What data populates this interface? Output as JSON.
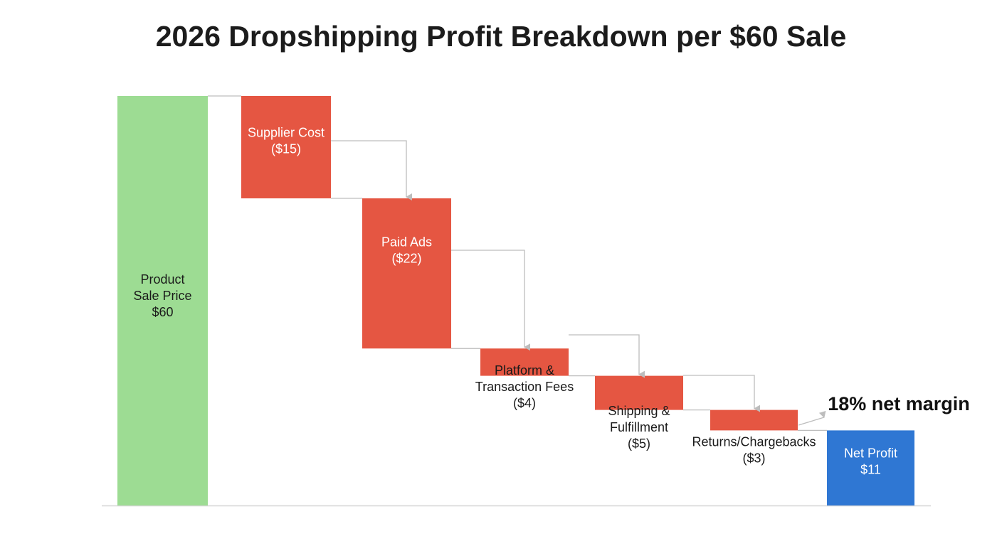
{
  "chart_data": {
    "type": "waterfall",
    "title": "2026 Dropshipping Profit Breakdown per $60 Sale",
    "xlabel": "",
    "ylabel": "",
    "ylim": [
      0,
      60
    ],
    "grid": false,
    "unit": "$",
    "bars": [
      {
        "kind": "total",
        "label": [
          "Product",
          "Sale Price",
          "$60"
        ],
        "value": 60,
        "start": 0,
        "end": 60
      },
      {
        "kind": "decrease",
        "label": [
          "Supplier Cost",
          "($15)"
        ],
        "value": -15,
        "start": 60,
        "end": 45
      },
      {
        "kind": "decrease",
        "label": [
          "Paid Ads",
          "($22)"
        ],
        "value": -22,
        "start": 45,
        "end": 23
      },
      {
        "kind": "decrease",
        "label": [
          "Platform &",
          "Transaction Fees",
          "($4)"
        ],
        "value": -4,
        "start": 23,
        "end": 19
      },
      {
        "kind": "decrease",
        "label": [
          "Shipping &",
          "Fulfillment",
          "($5)"
        ],
        "value": -5,
        "start": 19,
        "end": 14
      },
      {
        "kind": "decrease",
        "label": [
          "Returns/Chargebacks",
          "($3)"
        ],
        "value": -3,
        "start": 14,
        "end": 11
      },
      {
        "kind": "total",
        "label": [
          "Net Profit",
          "$11"
        ],
        "value": 11,
        "start": 0,
        "end": 11
      }
    ],
    "annotation": "18% net margin"
  },
  "colors": {
    "total_start": "#9ddc93",
    "decrease": "#e55642",
    "net": "#2f77d3",
    "connector": "#bdbdbd",
    "baseline": "#d6d6d6",
    "label_dark": "#1a1a1a",
    "label_light": "#ffffff"
  }
}
